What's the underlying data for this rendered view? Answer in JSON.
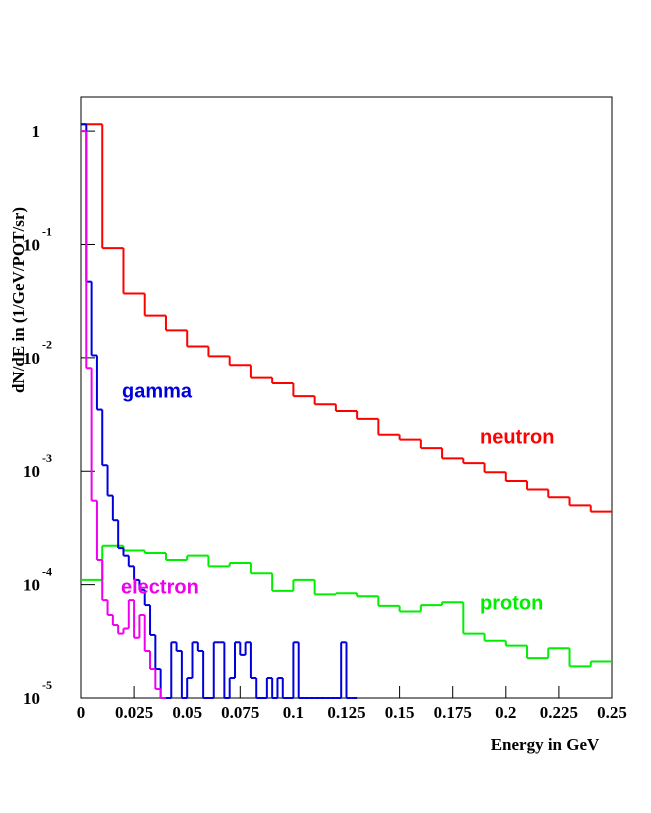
{
  "chart_data": {
    "type": "histogram",
    "xlabel": "Energy in GeV",
    "ylabel": "dN/dE in (1/GeV/POT/sr)",
    "log_y": true,
    "xlim": [
      0,
      0.25
    ],
    "ylim": [
      1e-05,
      2
    ],
    "xticks": [
      0,
      0.025,
      0.05,
      0.075,
      0.1,
      0.125,
      0.15,
      0.175,
      0.2,
      0.225,
      0.25
    ],
    "yticks": [
      {
        "value": 1e-05,
        "label": "10",
        "exponent": "-5"
      },
      {
        "value": 0.0001,
        "label": "10",
        "exponent": "-4"
      },
      {
        "value": 0.001,
        "label": "10",
        "exponent": "-3"
      },
      {
        "value": 0.01,
        "label": "10",
        "exponent": "-2"
      },
      {
        "value": 0.1,
        "label": "10",
        "exponent": "-1"
      },
      1
    ],
    "series": [
      {
        "name": "neutron",
        "color": "#ff0000",
        "bins": [
          0,
          0.01,
          0.02,
          0.03,
          0.04,
          0.05,
          0.06,
          0.07,
          0.08,
          0.09,
          0.1,
          0.11,
          0.12,
          0.13,
          0.14,
          0.15,
          0.16,
          0.17,
          0.18,
          0.19,
          0.2,
          0.21,
          0.22,
          0.23,
          0.24,
          0.25
        ],
        "values": [
          1.15,
          0.093,
          0.037,
          0.0236,
          0.0175,
          0.0126,
          0.0103,
          0.0086,
          0.0067,
          0.006,
          0.0046,
          0.0039,
          0.0034,
          0.0029,
          0.0021,
          0.0019,
          0.0016,
          0.0013,
          0.00118,
          0.00098,
          0.00082,
          0.00069,
          0.00059,
          0.0005,
          0.00044
        ]
      },
      {
        "name": "proton",
        "color": "#00ee00",
        "bins": [
          0,
          0.01,
          0.02,
          0.03,
          0.04,
          0.05,
          0.06,
          0.07,
          0.08,
          0.09,
          0.1,
          0.11,
          0.12,
          0.13,
          0.14,
          0.15,
          0.16,
          0.17,
          0.18,
          0.19,
          0.2,
          0.21,
          0.22,
          0.23,
          0.24,
          0.25
        ],
        "values": [
          0.00011,
          0.00022,
          0.0002,
          0.00019,
          0.000165,
          0.00018,
          0.000145,
          0.000155,
          0.000126,
          8.8e-05,
          0.00011,
          8.2e-05,
          8.4e-05,
          7.9e-05,
          6.5e-05,
          5.8e-05,
          6.6e-05,
          7e-05,
          3.7e-05,
          3.2e-05,
          2.9e-05,
          2.25e-05,
          2.75e-05,
          1.9e-05,
          2.1e-05
        ]
      },
      {
        "name": "gamma",
        "color": "#0000dd",
        "bins": [
          0,
          0.0025,
          0.005,
          0.0075,
          0.01,
          0.0125,
          0.015,
          0.0175,
          0.02,
          0.0225,
          0.025,
          0.0275,
          0.03,
          0.0325,
          0.035,
          0.0375,
          0.04,
          0.0425,
          0.045,
          0.0475,
          0.05,
          0.0525,
          0.055,
          0.0575,
          0.06,
          0.0625,
          0.065,
          0.0675,
          0.07,
          0.0725,
          0.075,
          0.0775,
          0.08,
          0.0825,
          0.085,
          0.0875,
          0.09,
          0.0925,
          0.095,
          0.0975,
          0.1,
          0.1025,
          0.105,
          0.1075,
          0.11,
          0.1125,
          0.115,
          0.1175,
          0.12,
          0.1225,
          0.125,
          0.1275,
          0.13
        ],
        "values": [
          1.15,
          0.047,
          0.0105,
          0.0035,
          0.00113,
          0.00061,
          0.00037,
          0.00021,
          0.00018,
          0.000145,
          0.00011,
          9e-05,
          6.6e-05,
          3.6e-05,
          1.8e-05,
          0,
          0,
          3.1e-05,
          2.6e-05,
          0,
          1.5e-05,
          3.1e-05,
          2.6e-05,
          0,
          0,
          3.1e-05,
          3.1e-05,
          0,
          1.5e-05,
          3.1e-05,
          2.4e-05,
          3.1e-05,
          1.5e-05,
          0,
          0,
          1.5e-05,
          0,
          1.5e-05,
          0,
          0,
          3.1e-05,
          0,
          0,
          0,
          0,
          0,
          0,
          0,
          0,
          3.1e-05,
          0,
          0
        ]
      },
      {
        "name": "electron",
        "color": "#ee00ee",
        "bins": [
          0,
          0.0025,
          0.005,
          0.0075,
          0.01,
          0.0125,
          0.015,
          0.0175,
          0.02,
          0.0225,
          0.025,
          0.0275,
          0.03,
          0.0325,
          0.035,
          0.0375,
          0.04
        ],
        "values": [
          1.0,
          0.0081,
          0.00055,
          0.000165,
          7.3e-05,
          5.4e-05,
          4.4e-05,
          3.7e-05,
          4.1e-05,
          7.3e-05,
          3.4e-05,
          5.4e-05,
          2.6e-05,
          1.8e-05,
          1.2e-05,
          0
        ]
      }
    ]
  }
}
